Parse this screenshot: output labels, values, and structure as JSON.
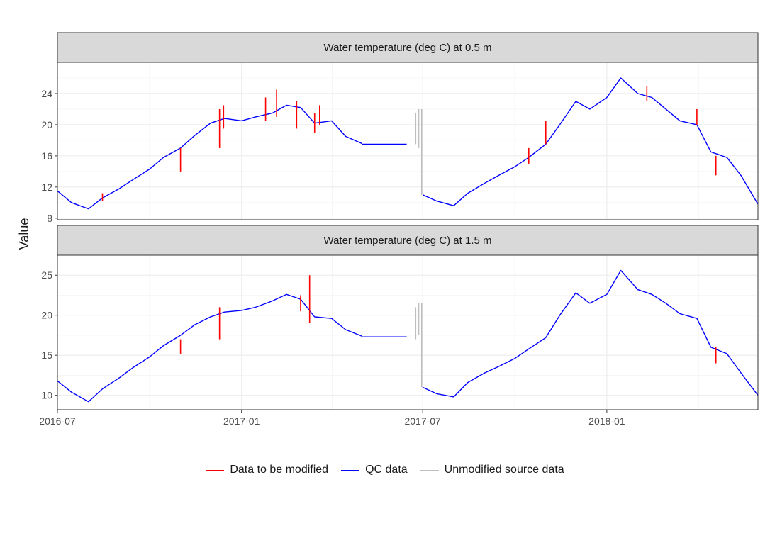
{
  "colors": {
    "modified": "#ff0000",
    "qc": "#0000ff",
    "unmodified": "#bebebe",
    "strip_bg": "#d9d9d9",
    "grid_major": "#ebebeb",
    "grid_minor": "#f4f4f4",
    "panel_border": "#333333",
    "axis_text": "#4d4d4d"
  },
  "chart_data": {
    "type": "line",
    "title": "",
    "xlabel": "",
    "ylabel": "Value",
    "grid": true,
    "legend_placement": "bottom",
    "legend": [
      {
        "key": "modified",
        "label": "Data to be modified"
      },
      {
        "key": "qc",
        "label": "QC data"
      },
      {
        "key": "unmodified",
        "label": "Unmodified source data"
      }
    ],
    "x_range": [
      "2016-07-01",
      "2018-06-01"
    ],
    "x_ticks": [
      "2016-07",
      "2017-01",
      "2017-07",
      "2018-01"
    ],
    "panels": [
      {
        "strip": "Water temperature (deg C) at 0.5 m",
        "ylim": [
          7.8,
          28.0
        ],
        "y_ticks": [
          8,
          12,
          16,
          20,
          24
        ],
        "series": [
          {
            "key": "qc",
            "segments": [
              {
                "x": [
                  "2016-07-01",
                  "2016-07-15",
                  "2016-08-01",
                  "2016-08-15",
                  "2016-09-01",
                  "2016-09-15",
                  "2016-10-01",
                  "2016-10-15",
                  "2016-11-01",
                  "2016-11-15",
                  "2016-12-01",
                  "2016-12-15",
                  "2017-01-01",
                  "2017-01-15",
                  "2017-02-01",
                  "2017-02-15",
                  "2017-03-01",
                  "2017-03-15",
                  "2017-04-01",
                  "2017-04-15",
                  "2017-05-01"
                ],
                "y": [
                  11.5,
                  10.0,
                  9.2,
                  10.6,
                  11.8,
                  13.0,
                  14.3,
                  15.8,
                  17.0,
                  18.6,
                  20.2,
                  20.8,
                  20.5,
                  21.0,
                  21.5,
                  22.5,
                  22.2,
                  20.2,
                  20.5,
                  18.5,
                  17.6
                ]
              },
              {
                "x": [
                  "2017-05-01",
                  "2017-06-15"
                ],
                "y": [
                  17.5,
                  17.5
                ]
              },
              {
                "x": [
                  "2017-07-01",
                  "2017-07-15",
                  "2017-08-01",
                  "2017-08-15",
                  "2017-09-01",
                  "2017-09-15",
                  "2017-10-01",
                  "2017-10-15",
                  "2017-11-01",
                  "2017-11-15",
                  "2017-12-01",
                  "2017-12-15",
                  "2018-01-01",
                  "2018-01-15",
                  "2018-02-01",
                  "2018-02-15",
                  "2018-03-01",
                  "2018-03-15",
                  "2018-04-01",
                  "2018-04-15",
                  "2018-05-01",
                  "2018-05-15",
                  "2018-06-01"
                ],
                "y": [
                  11.0,
                  10.2,
                  9.6,
                  11.2,
                  12.5,
                  13.5,
                  14.6,
                  15.8,
                  17.5,
                  20.0,
                  23.0,
                  22.0,
                  23.5,
                  26.0,
                  24.0,
                  23.5,
                  22.0,
                  20.5,
                  20.0,
                  16.5,
                  15.8,
                  13.5,
                  9.8
                ]
              }
            ]
          },
          {
            "key": "modified",
            "spikes": [
              {
                "x": "2016-08-15",
                "y": [
                  10.2,
                  11.2
                ]
              },
              {
                "x": "2016-11-01",
                "y": [
                  14.0,
                  17.0
                ]
              },
              {
                "x": "2016-12-10",
                "y": [
                  17.0,
                  22.0
                ]
              },
              {
                "x": "2016-12-14",
                "y": [
                  19.5,
                  22.5
                ]
              },
              {
                "x": "2017-01-25",
                "y": [
                  20.5,
                  23.5
                ]
              },
              {
                "x": "2017-02-05",
                "y": [
                  21.0,
                  24.5
                ]
              },
              {
                "x": "2017-02-25",
                "y": [
                  19.5,
                  23.0
                ]
              },
              {
                "x": "2017-03-15",
                "y": [
                  19.0,
                  21.5
                ]
              },
              {
                "x": "2017-03-20",
                "y": [
                  20.0,
                  22.5
                ]
              },
              {
                "x": "2017-10-15",
                "y": [
                  15.0,
                  17.0
                ]
              },
              {
                "x": "2017-11-01",
                "y": [
                  17.5,
                  20.5
                ]
              },
              {
                "x": "2018-02-10",
                "y": [
                  23.0,
                  25.0
                ]
              },
              {
                "x": "2018-04-01",
                "y": [
                  20.0,
                  22.0
                ]
              },
              {
                "x": "2018-04-20",
                "y": [
                  13.5,
                  16.0
                ]
              }
            ]
          },
          {
            "key": "unmodified",
            "spikes": [
              {
                "x": "2017-06-24",
                "y": [
                  17.5,
                  21.5
                ]
              },
              {
                "x": "2017-06-27",
                "y": [
                  17.0,
                  22.0
                ]
              },
              {
                "x": "2017-06-30",
                "y": [
                  11.0,
                  22.0
                ]
              }
            ]
          }
        ]
      },
      {
        "strip": "Water temperature (deg C) at 1.5 m",
        "ylim": [
          8.2,
          27.5
        ],
        "y_ticks": [
          10,
          15,
          20,
          25
        ],
        "series": [
          {
            "key": "qc",
            "segments": [
              {
                "x": [
                  "2016-07-01",
                  "2016-07-15",
                  "2016-08-01",
                  "2016-08-15",
                  "2016-09-01",
                  "2016-09-15",
                  "2016-10-01",
                  "2016-10-15",
                  "2016-11-01",
                  "2016-11-15",
                  "2016-12-01",
                  "2016-12-15",
                  "2017-01-01",
                  "2017-01-15",
                  "2017-02-01",
                  "2017-02-15",
                  "2017-03-01",
                  "2017-03-15",
                  "2017-04-01",
                  "2017-04-15",
                  "2017-05-01"
                ],
                "y": [
                  11.8,
                  10.4,
                  9.2,
                  10.8,
                  12.2,
                  13.5,
                  14.8,
                  16.2,
                  17.5,
                  18.8,
                  19.8,
                  20.4,
                  20.6,
                  21.0,
                  21.8,
                  22.6,
                  22.0,
                  19.8,
                  19.6,
                  18.2,
                  17.4
                ]
              },
              {
                "x": [
                  "2017-05-01",
                  "2017-06-15"
                ],
                "y": [
                  17.3,
                  17.3
                ]
              },
              {
                "x": [
                  "2017-07-01",
                  "2017-07-15",
                  "2017-08-01",
                  "2017-08-15",
                  "2017-09-01",
                  "2017-09-15",
                  "2017-10-01",
                  "2017-10-15",
                  "2017-11-01",
                  "2017-11-15",
                  "2017-12-01",
                  "2017-12-15",
                  "2018-01-01",
                  "2018-01-15",
                  "2018-02-01",
                  "2018-02-15",
                  "2018-03-01",
                  "2018-03-15",
                  "2018-04-01",
                  "2018-04-15",
                  "2018-05-01",
                  "2018-05-15",
                  "2018-06-01"
                ],
                "y": [
                  11.0,
                  10.2,
                  9.8,
                  11.6,
                  12.8,
                  13.6,
                  14.6,
                  15.8,
                  17.2,
                  20.0,
                  22.8,
                  21.5,
                  22.6,
                  25.6,
                  23.2,
                  22.6,
                  21.5,
                  20.2,
                  19.6,
                  16.0,
                  15.2,
                  12.8,
                  10.0
                ]
              }
            ]
          },
          {
            "key": "modified",
            "spikes": [
              {
                "x": "2016-11-01",
                "y": [
                  15.2,
                  17.0
                ]
              },
              {
                "x": "2016-12-10",
                "y": [
                  17.0,
                  21.0
                ]
              },
              {
                "x": "2017-03-01",
                "y": [
                  20.5,
                  22.5
                ]
              },
              {
                "x": "2017-03-10",
                "y": [
                  19.0,
                  25.0
                ]
              },
              {
                "x": "2018-04-20",
                "y": [
                  14.0,
                  16.0
                ]
              }
            ]
          },
          {
            "key": "unmodified",
            "spikes": [
              {
                "x": "2017-06-24",
                "y": [
                  17.0,
                  21.0
                ]
              },
              {
                "x": "2017-06-27",
                "y": [
                  17.5,
                  21.5
                ]
              },
              {
                "x": "2017-06-30",
                "y": [
                  11.0,
                  21.5
                ]
              }
            ]
          }
        ]
      }
    ]
  }
}
